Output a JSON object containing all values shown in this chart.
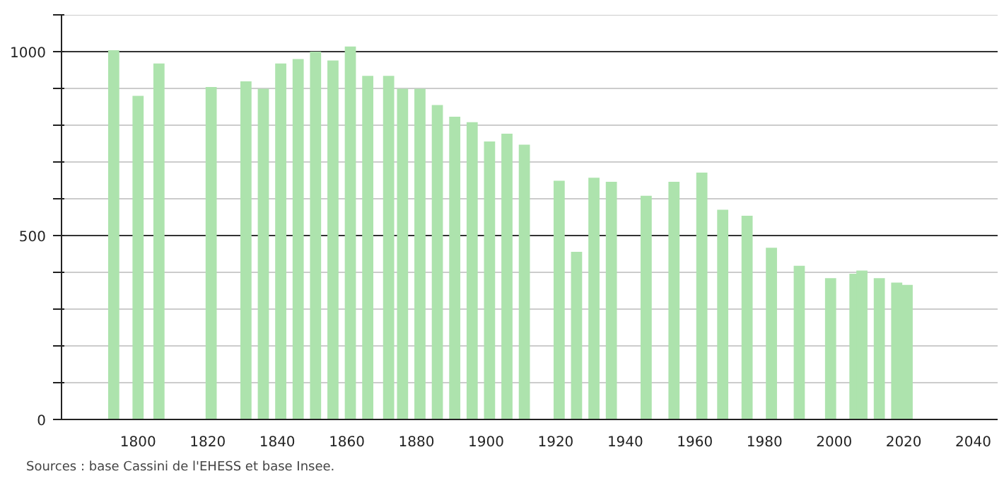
{
  "chart_data": {
    "type": "bar",
    "x": [
      1793,
      1800,
      1806,
      1821,
      1831,
      1836,
      1841,
      1846,
      1851,
      1856,
      1861,
      1866,
      1872,
      1876,
      1881,
      1886,
      1891,
      1896,
      1901,
      1906,
      1911,
      1921,
      1926,
      1931,
      1936,
      1946,
      1954,
      1962,
      1968,
      1975,
      1982,
      1990,
      1999,
      2006,
      2008,
      2013,
      2018,
      2021
    ],
    "values": [
      1004,
      880,
      968,
      904,
      919,
      899,
      968,
      980,
      1000,
      976,
      1014,
      934,
      934,
      899,
      899,
      855,
      823,
      808,
      756,
      777,
      747,
      649,
      456,
      657,
      646,
      608,
      646,
      671,
      570,
      554,
      467,
      418,
      384,
      396,
      405,
      384,
      372,
      366
    ],
    "color": "#ade3ad",
    "xlim": [
      1778,
      2047
    ],
    "xticks": [
      1800,
      1820,
      1840,
      1860,
      1880,
      1900,
      1920,
      1940,
      1960,
      1980,
      2000,
      2020,
      2040
    ],
    "ylim": [
      0,
      1100
    ],
    "yticks": [
      0,
      {
        "value": 100,
        "label": null
      },
      {
        "value": 200,
        "label": null
      },
      {
        "value": 300,
        "label": null
      },
      {
        "value": 400,
        "label": null
      },
      500,
      {
        "value": 600,
        "label": null
      },
      {
        "value": 700,
        "label": null
      },
      {
        "value": 800,
        "label": null
      },
      {
        "value": 900,
        "label": null
      },
      1000,
      {
        "value": 1100,
        "label": null
      }
    ],
    "grid": "y",
    "annotations": [
      "Sources : base Cassini de l'EHESS et base Insee."
    ]
  }
}
